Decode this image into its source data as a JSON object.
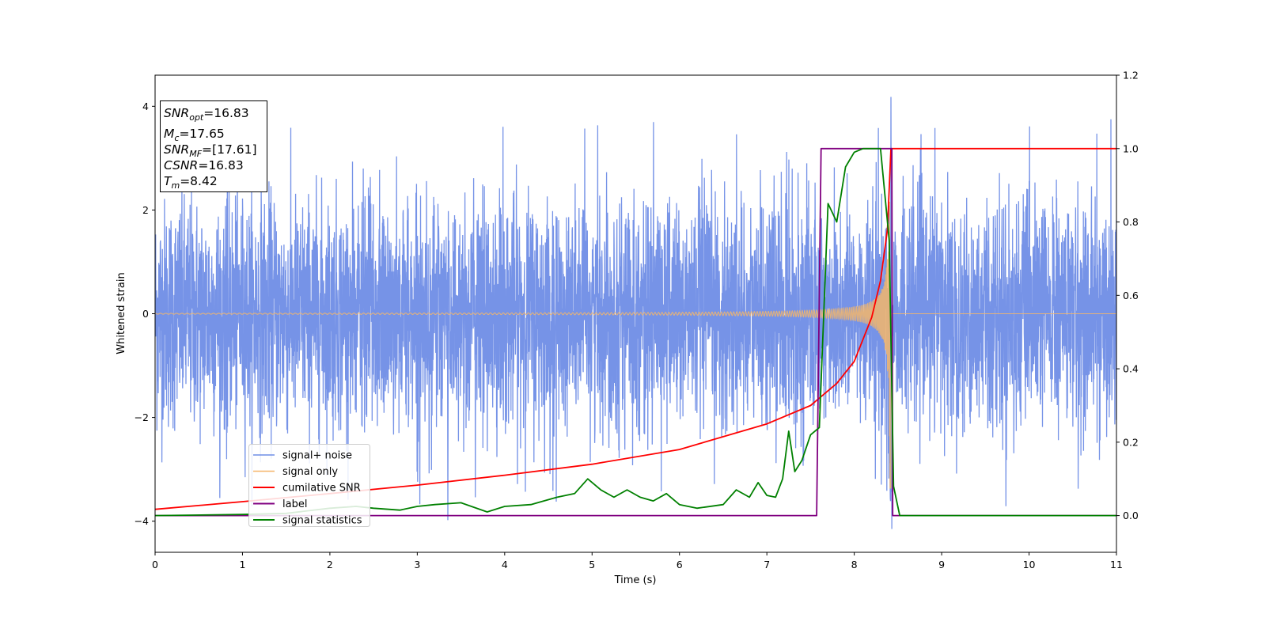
{
  "chart_data": {
    "type": "line",
    "xlabel": "Time (s)",
    "ylabel": "Whitened strain",
    "xlim": [
      0,
      11
    ],
    "ylim": [
      -4.6,
      4.6
    ],
    "y2lim": [
      -0.1,
      1.2
    ],
    "xticks": [
      0,
      1,
      2,
      3,
      4,
      5,
      6,
      7,
      8,
      9,
      10,
      11
    ],
    "yticks": [
      -4,
      -2,
      0,
      2,
      4
    ],
    "y2ticks": [
      0.0,
      0.2,
      0.4,
      0.6,
      0.8,
      1.0,
      1.2
    ],
    "legend_position": "lower-left",
    "info_box": {
      "snr_opt": "=16.83",
      "mc": "=17.65",
      "snr_mf": "=[17.61]",
      "csnr": "=16.83",
      "tm": "=8.42"
    },
    "series": [
      {
        "name": "signal+ noise",
        "axis": "left",
        "color": "#6f8de6",
        "kind": "noise",
        "typical_amplitude": 2.6,
        "peak_spikes": [
          [
            8.42,
            4.18
          ],
          [
            8.43,
            -4.15
          ],
          [
            3.35,
            -3.98
          ]
        ]
      },
      {
        "name": "signal only",
        "axis": "left",
        "color": "#f5b66a",
        "kind": "chirp",
        "merger_time": 8.42,
        "peak_amplitude": 3.5
      },
      {
        "name": "cumilative SNR",
        "axis": "right",
        "color": "#ff0000",
        "x": [
          0,
          1,
          2,
          3,
          4,
          5,
          6,
          7,
          7.5,
          7.8,
          8.0,
          8.2,
          8.3,
          8.38,
          8.42,
          8.43,
          11
        ],
        "y": [
          0.017,
          0.038,
          0.06,
          0.083,
          0.11,
          0.14,
          0.18,
          0.25,
          0.3,
          0.36,
          0.42,
          0.54,
          0.64,
          0.78,
          1.0,
          1.0,
          1.0
        ]
      },
      {
        "name": "label",
        "axis": "right",
        "color": "#800080",
        "x": [
          0,
          7.57,
          7.62,
          8.43,
          8.44,
          11
        ],
        "y": [
          0,
          0,
          1,
          1,
          0,
          0
        ]
      },
      {
        "name": "signal statistics",
        "axis": "right",
        "color": "#008000",
        "x": [
          0,
          1,
          1.5,
          2,
          2.3,
          2.5,
          2.8,
          3,
          3.2,
          3.5,
          3.8,
          4,
          4.3,
          4.6,
          4.8,
          4.95,
          5.1,
          5.25,
          5.4,
          5.55,
          5.7,
          5.85,
          6.0,
          6.2,
          6.5,
          6.65,
          6.8,
          6.9,
          7.0,
          7.1,
          7.18,
          7.25,
          7.32,
          7.4,
          7.5,
          7.6,
          7.7,
          7.8,
          7.9,
          8.0,
          8.1,
          8.3,
          8.4,
          8.45,
          8.52,
          11
        ],
        "y": [
          0.0,
          0.003,
          0.006,
          0.02,
          0.025,
          0.02,
          0.015,
          0.025,
          0.03,
          0.035,
          0.01,
          0.025,
          0.03,
          0.05,
          0.06,
          0.1,
          0.07,
          0.05,
          0.07,
          0.05,
          0.04,
          0.06,
          0.03,
          0.02,
          0.03,
          0.07,
          0.05,
          0.09,
          0.055,
          0.05,
          0.1,
          0.23,
          0.12,
          0.15,
          0.22,
          0.24,
          0.85,
          0.8,
          0.95,
          0.99,
          1.0,
          1.0,
          0.75,
          0.08,
          0.0,
          0.0
        ]
      }
    ]
  }
}
